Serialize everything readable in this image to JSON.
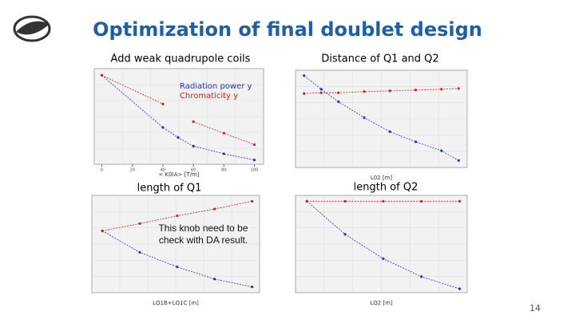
{
  "title": "Optimization of final doublet design",
  "labels": [
    "Add weak quadrupole coils",
    "Distance of Q1 and Q2",
    "length of Q1",
    "length of Q2"
  ],
  "page_number": "14",
  "chart_data": [
    {
      "type": "line",
      "xlabel": "< K0IA> [T/m]",
      "xlim": [
        -5,
        106
      ],
      "ylim": [
        0.85,
        1.05
      ],
      "xticks": [
        0,
        20,
        40,
        60,
        80,
        100
      ],
      "x": [
        0,
        40,
        50,
        60,
        80,
        100
      ],
      "series": [
        {
          "name": "Radiation power y",
          "color": "#2233bb",
          "values": [
            1.036,
            0.927,
            0.906,
            0.888,
            0.872,
            0.859
          ]
        },
        {
          "name": "Chromaticity y",
          "color": "#cc2222",
          "values": [
            1.036,
            0.976,
            null,
            0.939,
            0.915,
            0.891
          ]
        }
      ]
    },
    {
      "type": "line",
      "xlabel": "L02 [m]",
      "xlim": [
        0.1,
        1.1
      ],
      "ylim": [
        0.8,
        1.05
      ],
      "x": [
        0.15,
        0.25,
        0.35,
        0.5,
        0.65,
        0.8,
        0.95,
        1.05
      ],
      "series": [
        {
          "color": "#2233bb",
          "values": [
            1.036,
            1.001,
            0.969,
            0.928,
            0.892,
            0.866,
            0.843,
            0.818
          ]
        },
        {
          "color": "#cc2222",
          "values": [
            0.99,
            0.992,
            0.992,
            0.995,
            0.997,
            0.999,
            1.001,
            1.003
          ]
        }
      ]
    },
    {
      "type": "line",
      "xlabel": "LQ1B+LQ1C [m]",
      "xlim": [
        -0.28,
        4.2
      ],
      "ylim": [
        0.9,
        1.1
      ],
      "annotation": "This knob need to be check with DA result.",
      "x": [
        0,
        1,
        2,
        3,
        4
      ],
      "series": [
        {
          "color": "#2233bb",
          "values": [
            1.027,
            0.983,
            0.953,
            0.928,
            0.912
          ]
        },
        {
          "color": "#cc2222",
          "values": [
            1.027,
            1.042,
            1.058,
            1.072,
            1.088
          ]
        }
      ]
    },
    {
      "type": "line",
      "xlabel": "LQ2 [m]",
      "xlim": [
        -0.3,
        4.2
      ],
      "ylim": [
        0.9,
        1.1
      ],
      "x": [
        0,
        1,
        2,
        3,
        4
      ],
      "series": [
        {
          "color": "#2233bb",
          "values": [
            1.088,
            1.02,
            0.97,
            0.933,
            0.908
          ]
        },
        {
          "color": "#cc2222",
          "values": [
            1.088,
            1.088,
            1.088,
            1.088,
            1.088
          ]
        }
      ]
    }
  ]
}
